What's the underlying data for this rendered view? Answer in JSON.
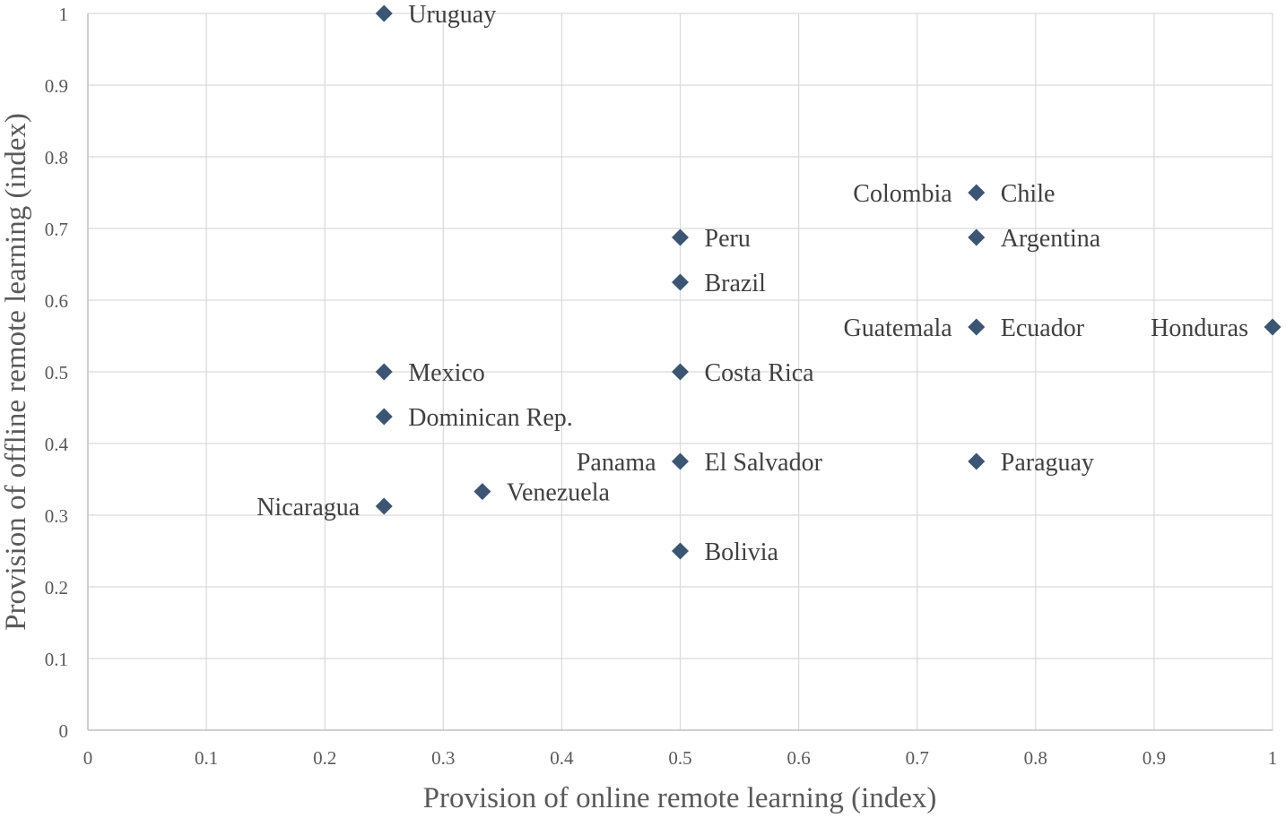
{
  "chart_data": {
    "type": "scatter",
    "xlabel": "Provision of  online remote learning (index)",
    "ylabel": "Provision of  offline remote learning (index)",
    "xlim": [
      0,
      1
    ],
    "ylim": [
      0,
      1
    ],
    "x_ticks": [
      "0",
      "0.1",
      "0.2",
      "0.3",
      "0.4",
      "0.5",
      "0.6",
      "0.7",
      "0.8",
      "0.9",
      "1"
    ],
    "y_ticks": [
      "0",
      "0.1",
      "0.2",
      "0.3",
      "0.4",
      "0.5",
      "0.6",
      "0.7",
      "0.8",
      "0.9",
      "1"
    ],
    "grid": true,
    "marker": "diamond",
    "marker_color": "#3c5573",
    "points": [
      {
        "label": "Uruguay",
        "x": 0.25,
        "y": 1.0,
        "label_side": "right"
      },
      {
        "label": "Colombia",
        "x": 0.75,
        "y": 0.75,
        "label_side": "left"
      },
      {
        "label": "Chile",
        "x": 0.75,
        "y": 0.75,
        "label_side": "right"
      },
      {
        "label": "Peru",
        "x": 0.5,
        "y": 0.6875,
        "label_side": "right"
      },
      {
        "label": "Argentina",
        "x": 0.75,
        "y": 0.6875,
        "label_side": "right"
      },
      {
        "label": "Brazil",
        "x": 0.5,
        "y": 0.625,
        "label_side": "right"
      },
      {
        "label": "Guatemala",
        "x": 0.75,
        "y": 0.5625,
        "label_side": "left"
      },
      {
        "label": "Ecuador",
        "x": 0.75,
        "y": 0.5625,
        "label_side": "right"
      },
      {
        "label": "Honduras",
        "x": 1.0,
        "y": 0.5625,
        "label_side": "left"
      },
      {
        "label": "Mexico",
        "x": 0.25,
        "y": 0.5,
        "label_side": "right"
      },
      {
        "label": "Costa Rica",
        "x": 0.5,
        "y": 0.5,
        "label_side": "right"
      },
      {
        "label": "Dominican Rep.",
        "x": 0.25,
        "y": 0.4375,
        "label_side": "right"
      },
      {
        "label": "Panama",
        "x": 0.5,
        "y": 0.375,
        "label_side": "left"
      },
      {
        "label": "El Salvador",
        "x": 0.5,
        "y": 0.375,
        "label_side": "right"
      },
      {
        "label": "Paraguay",
        "x": 0.75,
        "y": 0.375,
        "label_side": "right"
      },
      {
        "label": "Venezuela",
        "x": 0.333,
        "y": 0.333,
        "label_side": "right"
      },
      {
        "label": "Nicaragua",
        "x": 0.25,
        "y": 0.3125,
        "label_side": "left"
      },
      {
        "label": "Bolivia",
        "x": 0.5,
        "y": 0.25,
        "label_side": "right"
      }
    ]
  }
}
